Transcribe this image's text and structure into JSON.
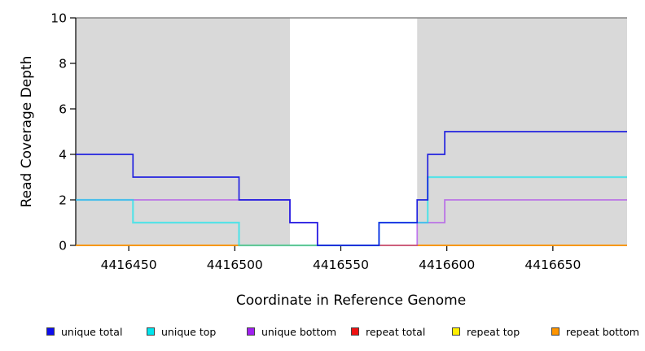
{
  "chart_data": {
    "type": "line",
    "subtype": "step",
    "title": "",
    "xlabel": "Coordinate in Reference Genome",
    "ylabel": "Read Coverage Depth",
    "xlim": [
      4416425,
      4416685
    ],
    "ylim": [
      0,
      10
    ],
    "x_ticks": [
      4416450,
      4416500,
      4416550,
      4416600,
      4416650
    ],
    "y_ticks": [
      0,
      2,
      4,
      6,
      8,
      10
    ],
    "grid": false,
    "band_color": "#d9d9d9",
    "background_bands": [
      [
        4416425,
        4416526
      ],
      [
        4416586,
        4416685
      ]
    ],
    "top_boundary_line": {
      "y": 10,
      "color": "#878787"
    },
    "axis_color": "#000000",
    "series": [
      {
        "name": "repeat total",
        "color": "#dd0000",
        "opacity": 0.9,
        "width": 1.4,
        "steps": [
          [
            4416425,
            0
          ],
          [
            4416685,
            0
          ]
        ]
      },
      {
        "name": "repeat top",
        "color": "#ffee00",
        "opacity": 0.9,
        "width": 1.4,
        "steps": [
          [
            4416425,
            0
          ],
          [
            4416685,
            0
          ]
        ]
      },
      {
        "name": "repeat bottom",
        "color": "#ff9500",
        "opacity": 1.0,
        "width": 1.5,
        "steps": [
          [
            4416425,
            0
          ],
          [
            4416685,
            0
          ]
        ]
      },
      {
        "name": "unique bottom",
        "color": "#a020f0",
        "opacity": 0.55,
        "width": 1.8,
        "steps": [
          [
            4416425,
            2
          ],
          [
            4416526,
            1
          ],
          [
            4416539,
            0
          ],
          [
            4416586,
            1
          ],
          [
            4416599,
            2
          ],
          [
            4416685,
            2
          ]
        ]
      },
      {
        "name": "unique top",
        "color": "#00e8f0",
        "opacity": 0.6,
        "width": 2.2,
        "steps": [
          [
            4416425,
            2
          ],
          [
            4416452,
            1
          ],
          [
            4416502,
            0
          ],
          [
            4416568,
            1
          ],
          [
            4416591,
            3
          ],
          [
            4416685,
            3
          ]
        ]
      },
      {
        "name": "unique total",
        "color": "#1414e0",
        "opacity": 0.92,
        "width": 1.7,
        "steps": [
          [
            4416425,
            4
          ],
          [
            4416452,
            3
          ],
          [
            4416502,
            2
          ],
          [
            4416526,
            1
          ],
          [
            4416539,
            0
          ],
          [
            4416568,
            1
          ],
          [
            4416586,
            2
          ],
          [
            4416591,
            4
          ],
          [
            4416599,
            5
          ],
          [
            4416685,
            5
          ]
        ]
      }
    ],
    "legend": [
      {
        "label": "unique total",
        "color": "#0d0dee"
      },
      {
        "label": "unique top",
        "color": "#00e5ee"
      },
      {
        "label": "unique bottom",
        "color": "#a020f0"
      },
      {
        "label": "repeat total",
        "color": "#ee1111"
      },
      {
        "label": "repeat top",
        "color": "#ffee00"
      },
      {
        "label": "repeat bottom",
        "color": "#ff9500"
      }
    ],
    "legend_position": "bottom"
  }
}
